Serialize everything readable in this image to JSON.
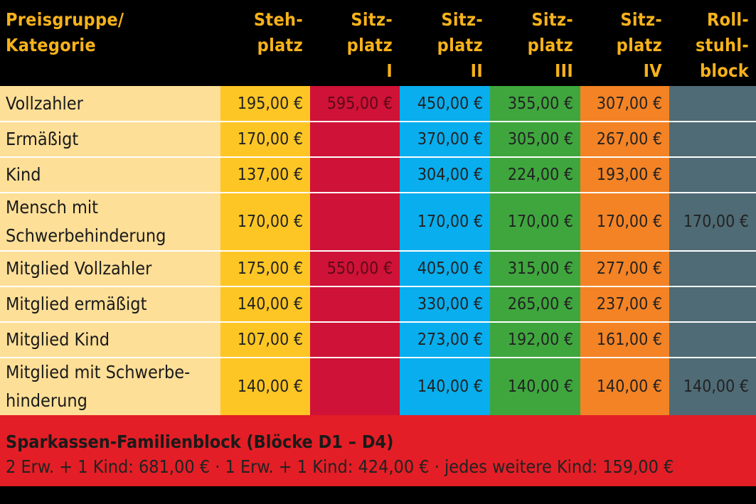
{
  "header": {
    "columns": [
      "Preisgruppe/\nKategorie",
      "Steh-\nplatz",
      "Sitz-\nplatz\nI",
      "Sitz-\nplatz\nII",
      "Sitz-\nplatz\nIII",
      "Sitz-\nplatz\nIV",
      "Roll-\nstuhl-\nblock"
    ]
  },
  "colors": {
    "header_bg": "#000000",
    "header_text": "#f6b21a",
    "category_bg": "#fddf97",
    "stehplatz": "#fdc625",
    "sitzplatz_1": "#cf1237",
    "sitzplatz_2": "#08aeee",
    "sitzplatz_3": "#3fa63e",
    "sitzplatz_4": "#f48325",
    "rollstuhlblock": "#4f6b75",
    "footer_bg": "#e41e26"
  },
  "rows": [
    {
      "category": "Vollzahler",
      "prices": [
        "195,00 €",
        "595,00 €",
        "450,00 €",
        "355,00 €",
        "307,00 €",
        ""
      ]
    },
    {
      "category": "Ermäßigt",
      "prices": [
        "170,00 €",
        "",
        "370,00 €",
        "305,00 €",
        "267,00 €",
        ""
      ]
    },
    {
      "category": "Kind",
      "prices": [
        "137,00 €",
        "",
        "304,00 €",
        "224,00 €",
        "193,00 €",
        ""
      ]
    },
    {
      "category": "Mensch mit\nSchwerbehinderung",
      "prices": [
        "170,00 €",
        "",
        "170,00 €",
        "170,00 €",
        "170,00 €",
        "170,00 €"
      ]
    },
    {
      "category": "Mitglied Vollzahler",
      "prices": [
        "175,00 €",
        "550,00 €",
        "405,00 €",
        "315,00 €",
        "277,00 €",
        ""
      ]
    },
    {
      "category": "Mitglied ermäßigt",
      "prices": [
        "140,00 €",
        "",
        "330,00 €",
        "265,00 €",
        "237,00 €",
        ""
      ]
    },
    {
      "category": "Mitglied Kind",
      "prices": [
        "107,00 €",
        "",
        "273,00 €",
        "192,00 €",
        "161,00 €",
        ""
      ]
    },
    {
      "category": "Mitglied mit Schwerbe-\nhinderung",
      "prices": [
        "140,00 €",
        "",
        "140,00 €",
        "140,00 €",
        "140,00 €",
        "140,00 €"
      ]
    }
  ],
  "footer": {
    "title": "Sparkassen-Familienblock (Blöcke D1 – D4)",
    "text": "2 Erw. + 1 Kind: 681,00 € · 1 Erw. + 1 Kind: 424,00 € · jedes weitere Kind: 159,00 €"
  }
}
